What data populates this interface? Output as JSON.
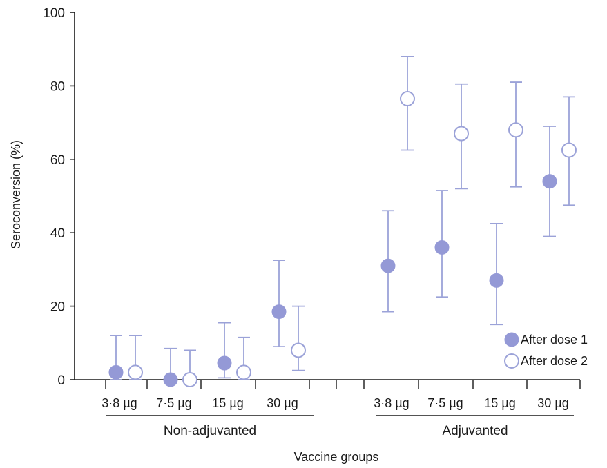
{
  "chart_data": {
    "type": "scatter",
    "title": "",
    "xlabel": "Vaccine groups",
    "ylabel": "Seroconversion (%)",
    "ylim": [
      0,
      100
    ],
    "yticks": [
      0,
      20,
      40,
      60,
      80,
      100
    ],
    "legend_position": "bottom-right",
    "grid": false,
    "colors": {
      "filled": "#9499d6",
      "stroke": "#9ba2d8",
      "axis": "#1a1a1a"
    },
    "groups": [
      {
        "label": "Non-adjuvanted",
        "categories": [
          "3·8  µg",
          "7·5 µg",
          "15 µg",
          "30 µg"
        ]
      },
      {
        "label": "Adjuvanted",
        "categories": [
          "3·8 µg",
          "7·5 µg",
          "15 µg",
          "30 µg"
        ]
      }
    ],
    "series": [
      {
        "name": "After dose 1",
        "marker": "filled",
        "values": [
          2,
          0,
          4.5,
          18.5,
          31,
          36,
          27,
          54
        ],
        "lower": [
          0,
          0,
          0.5,
          9,
          18.5,
          22.5,
          15,
          39
        ],
        "upper": [
          12,
          8.5,
          15.5,
          32.5,
          46,
          51.5,
          42.5,
          69
        ]
      },
      {
        "name": "After dose 2",
        "marker": "open",
        "values": [
          2,
          0,
          2,
          8,
          76.5,
          67,
          68,
          62.5
        ],
        "lower": [
          0,
          0,
          0,
          2.5,
          62.5,
          52,
          52.5,
          47.5
        ],
        "upper": [
          12,
          8,
          11.5,
          20,
          88,
          80.5,
          81,
          77
        ]
      }
    ]
  }
}
